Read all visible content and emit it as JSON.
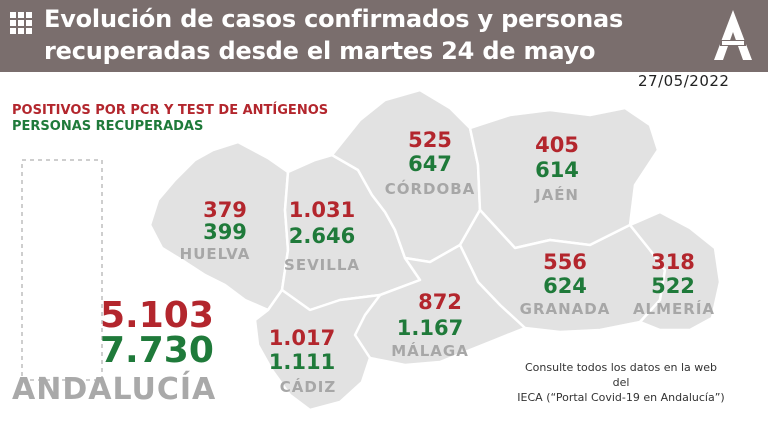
{
  "header": {
    "title_line1": "Evolución de casos confirmados y personas",
    "title_line2": "recuperadas desde el martes 24 de mayo",
    "date": "27/05/2022",
    "icons": [
      "grid-icon",
      "junta-logo"
    ]
  },
  "legend": {
    "positivos": "POSITIVOS POR PCR Y TEST DE ANTÍGENOS",
    "recuperadas": "PERSONAS RECUPERADAS"
  },
  "provinces": {
    "huelva": {
      "name": "HUELVA",
      "cases": "379",
      "recovered": "399"
    },
    "sevilla": {
      "name": "SEVILLA",
      "cases": "1.031",
      "recovered": "2.646"
    },
    "cordoba": {
      "name": "CÓRDOBA",
      "cases": "525",
      "recovered": "647"
    },
    "jaen": {
      "name": "JAÉN",
      "cases": "405",
      "recovered": "614"
    },
    "granada": {
      "name": "GRANADA",
      "cases": "556",
      "recovered": "624"
    },
    "almeria": {
      "name": "ALMERÍA",
      "cases": "318",
      "recovered": "522"
    },
    "malaga": {
      "name": "MÁLAGA",
      "cases": "872",
      "recovered": "1.167"
    },
    "cadiz": {
      "name": "CÁDIZ",
      "cases": "1.017",
      "recovered": "1.111"
    }
  },
  "total": {
    "name": "ANDALUCÍA",
    "cases": "5.103",
    "recovered": "7.730"
  },
  "note": {
    "line1": "Consulte todos los datos en la web del",
    "line2": "IECA (“Portal Covid-19 en Andalucía”)"
  },
  "colors": {
    "header": "#7a6e6d",
    "cases": "#b3262d",
    "recovered": "#1f7a3a",
    "map_fill": "#e2e2e2",
    "map_border": "#ffffff"
  }
}
